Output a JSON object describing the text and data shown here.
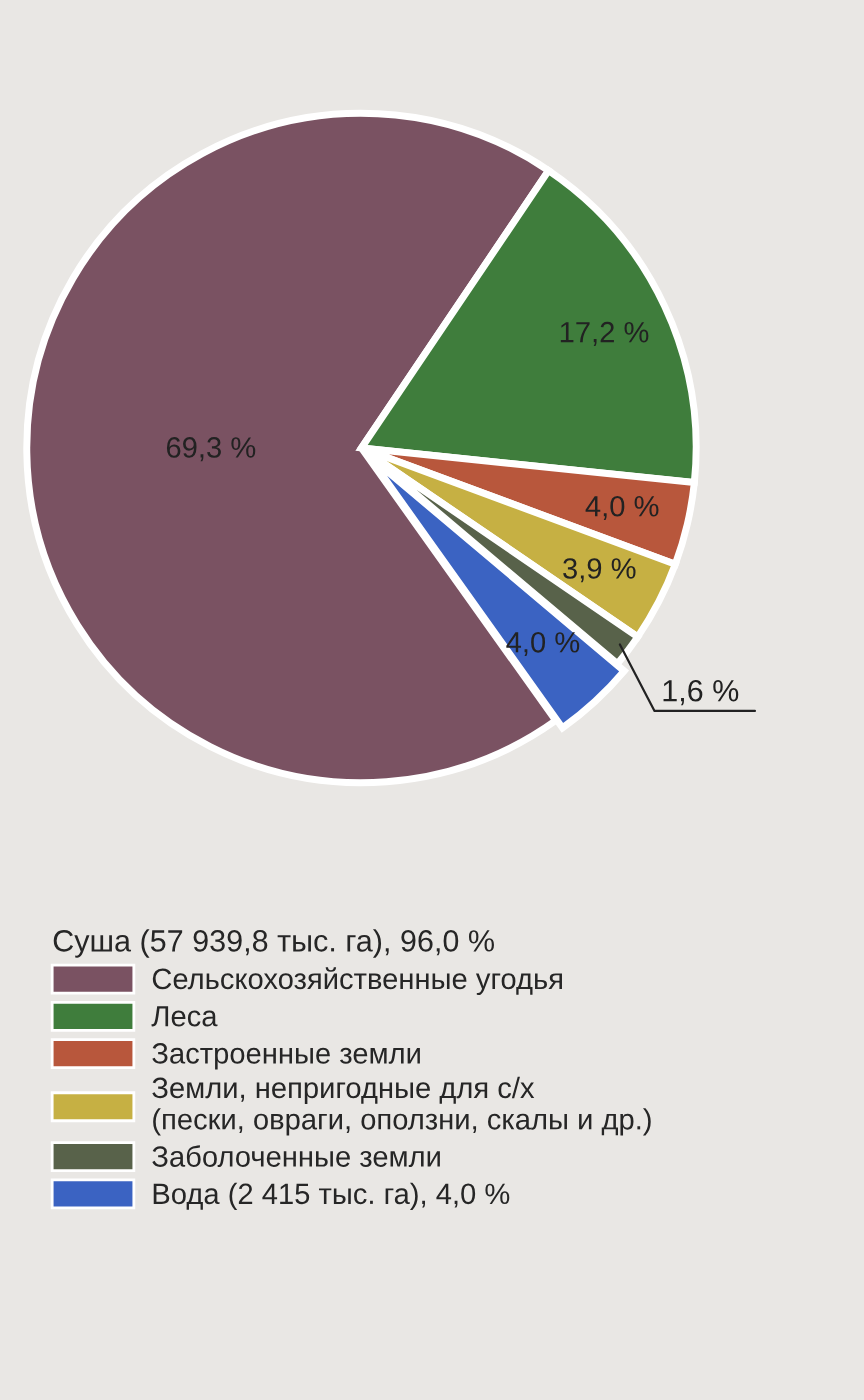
{
  "chart_data": {
    "type": "pie",
    "categories": [
      "Сельскохозяйственные угодья",
      "Леса",
      "Застроенные земли",
      "Земли, непригодные для с/х\n(пески, овраги, оползни, скалы и др.)",
      "Заболоченные земли",
      "Вода (2 415 тыс. га), 4,0 %"
    ],
    "values": [
      69.3,
      17.2,
      4.0,
      3.9,
      1.6,
      4.0
    ],
    "value_labels": [
      "69,3 %",
      "17,2 %",
      "4,0 %",
      "3,9 %",
      "1,6 %",
      "4,0 %"
    ],
    "colors": [
      "#7a5262",
      "#3f7d3c",
      "#b8573c",
      "#c6b043",
      "#58624a",
      "#3b63c2"
    ],
    "legend_title": "Суша (57 939,8 тыс. га), 96,0 %",
    "legend": "bottom"
  }
}
